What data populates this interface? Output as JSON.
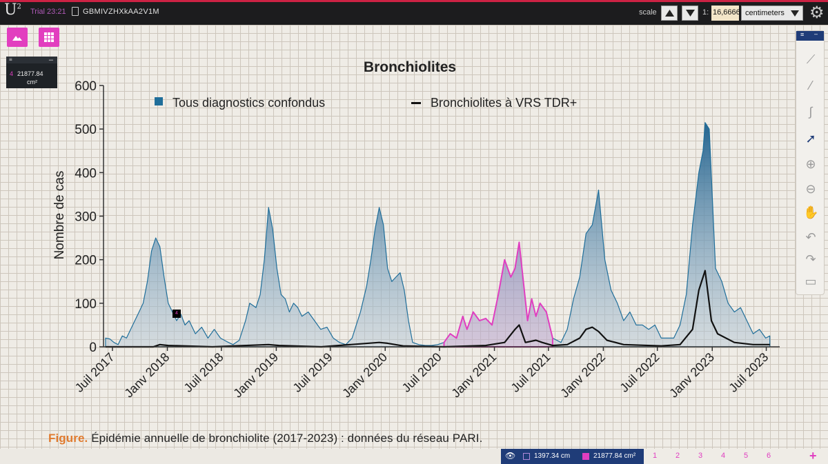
{
  "topbar": {
    "logo": "U",
    "logo_sup": "2",
    "trial": "Trial 23:21",
    "doc_name": "GBMIVZHXkAA2V1M",
    "scale_label": "scale",
    "ratio_label": "1:",
    "ratio_value": "16,6666",
    "unit": "centimeters"
  },
  "measure_panel": {
    "index": "4",
    "area_value": "21877.84",
    "area_unit": "cm²"
  },
  "statusbar": {
    "length": "1397.34 cm",
    "area": "21877.84 cm²",
    "pages": [
      "1",
      "2",
      "3",
      "4",
      "5",
      "6"
    ]
  },
  "annotation_marker": "4",
  "caption": {
    "figure_word": "Figure.",
    "text": " Épidémie annuelle de bronchiolite (2017-2023) : données du réseau PARI."
  },
  "colors": {
    "area_fill": "#b9c9d6",
    "area_stroke": "#1f6e9a",
    "vrs_line": "#111111",
    "selection": "#e03ec0",
    "accent_pink": "#e23ebf",
    "status_blue": "#1f3c78"
  },
  "chart_data": {
    "type": "area",
    "title": "Bronchiolites",
    "ylabel": "Nombre de cas",
    "xlabel": "",
    "ylim": [
      0,
      600
    ],
    "yticks": [
      "0",
      "100",
      "200",
      "300",
      "400",
      "500",
      "600"
    ],
    "xlim": [
      "2017-06-01",
      "2023-08-15"
    ],
    "xticks": [
      {
        "date": "2017-07-01",
        "label": "Juil 2017"
      },
      {
        "date": "2018-01-01",
        "label": "Janv 2018"
      },
      {
        "date": "2018-07-01",
        "label": "Juil 2018"
      },
      {
        "date": "2019-01-01",
        "label": "Janv 2019"
      },
      {
        "date": "2019-07-01",
        "label": "Juil 2019"
      },
      {
        "date": "2020-01-01",
        "label": "Janv 2020"
      },
      {
        "date": "2020-07-01",
        "label": "Juil 2020"
      },
      {
        "date": "2021-01-01",
        "label": "Janv 2021"
      },
      {
        "date": "2021-07-01",
        "label": "Juil 2021"
      },
      {
        "date": "2022-01-01",
        "label": "Janv 2022"
      },
      {
        "date": "2022-07-01",
        "label": "Juil 2022"
      },
      {
        "date": "2023-01-01",
        "label": "Janv 2023"
      },
      {
        "date": "2023-07-01",
        "label": "Juil 2023"
      }
    ],
    "grid": true,
    "legend_position": "top",
    "series": [
      {
        "name": "Tous diagnostics confondus",
        "style": "area",
        "points": [
          [
            "2017-06-08",
            20
          ],
          [
            "2017-06-22",
            18
          ],
          [
            "2017-07-06",
            10
          ],
          [
            "2017-07-20",
            5
          ],
          [
            "2017-08-03",
            25
          ],
          [
            "2017-08-17",
            20
          ],
          [
            "2017-09-07",
            50
          ],
          [
            "2017-09-28",
            80
          ],
          [
            "2017-10-12",
            100
          ],
          [
            "2017-10-26",
            150
          ],
          [
            "2017-11-09",
            220
          ],
          [
            "2017-11-23",
            250
          ],
          [
            "2017-12-07",
            230
          ],
          [
            "2017-12-21",
            160
          ],
          [
            "2018-01-04",
            100
          ],
          [
            "2018-01-18",
            80
          ],
          [
            "2018-02-01",
            60
          ],
          [
            "2018-02-15",
            75
          ],
          [
            "2018-03-01",
            50
          ],
          [
            "2018-03-15",
            60
          ],
          [
            "2018-04-05",
            30
          ],
          [
            "2018-04-26",
            45
          ],
          [
            "2018-05-17",
            20
          ],
          [
            "2018-06-07",
            40
          ],
          [
            "2018-06-28",
            20
          ],
          [
            "2018-07-19",
            12
          ],
          [
            "2018-08-09",
            5
          ],
          [
            "2018-08-30",
            15
          ],
          [
            "2018-09-20",
            60
          ],
          [
            "2018-10-04",
            100
          ],
          [
            "2018-10-25",
            90
          ],
          [
            "2018-11-08",
            120
          ],
          [
            "2018-11-22",
            200
          ],
          [
            "2018-12-06",
            320
          ],
          [
            "2018-12-20",
            270
          ],
          [
            "2019-01-03",
            180
          ],
          [
            "2019-01-17",
            120
          ],
          [
            "2019-01-31",
            110
          ],
          [
            "2019-02-14",
            80
          ],
          [
            "2019-02-28",
            100
          ],
          [
            "2019-03-14",
            90
          ],
          [
            "2019-03-28",
            70
          ],
          [
            "2019-04-18",
            80
          ],
          [
            "2019-05-09",
            60
          ],
          [
            "2019-05-30",
            40
          ],
          [
            "2019-06-20",
            45
          ],
          [
            "2019-07-11",
            20
          ],
          [
            "2019-08-01",
            10
          ],
          [
            "2019-08-22",
            5
          ],
          [
            "2019-09-12",
            20
          ],
          [
            "2019-09-26",
            50
          ],
          [
            "2019-10-10",
            80
          ],
          [
            "2019-10-31",
            140
          ],
          [
            "2019-11-14",
            200
          ],
          [
            "2019-11-28",
            270
          ],
          [
            "2019-12-12",
            320
          ],
          [
            "2019-12-26",
            280
          ],
          [
            "2020-01-09",
            180
          ],
          [
            "2020-01-23",
            150
          ],
          [
            "2020-02-06",
            160
          ],
          [
            "2020-02-20",
            170
          ],
          [
            "2020-03-05",
            130
          ],
          [
            "2020-03-19",
            60
          ],
          [
            "2020-04-02",
            10
          ],
          [
            "2020-04-23",
            5
          ],
          [
            "2020-05-14",
            3
          ],
          [
            "2020-06-04",
            3
          ],
          [
            "2020-06-25",
            5
          ],
          [
            "2020-07-16",
            10
          ],
          [
            "2020-08-06",
            30
          ],
          [
            "2020-08-27",
            20
          ],
          [
            "2020-09-17",
            70
          ],
          [
            "2020-10-01",
            40
          ],
          [
            "2020-10-22",
            80
          ],
          [
            "2020-11-12",
            60
          ],
          [
            "2020-12-03",
            65
          ],
          [
            "2020-12-24",
            50
          ],
          [
            "2021-01-14",
            120
          ],
          [
            "2021-02-04",
            200
          ],
          [
            "2021-02-25",
            160
          ],
          [
            "2021-03-11",
            180
          ],
          [
            "2021-03-25",
            240
          ],
          [
            "2021-04-08",
            150
          ],
          [
            "2021-04-22",
            60
          ],
          [
            "2021-05-06",
            110
          ],
          [
            "2021-05-20",
            70
          ],
          [
            "2021-06-03",
            100
          ],
          [
            "2021-06-24",
            80
          ],
          [
            "2021-07-15",
            20
          ],
          [
            "2021-07-29",
            15
          ],
          [
            "2021-08-12",
            10
          ],
          [
            "2021-09-02",
            40
          ],
          [
            "2021-09-23",
            110
          ],
          [
            "2021-10-14",
            160
          ],
          [
            "2021-11-04",
            260
          ],
          [
            "2021-11-25",
            280
          ],
          [
            "2021-12-16",
            360
          ],
          [
            "2022-01-06",
            200
          ],
          [
            "2022-01-27",
            130
          ],
          [
            "2022-02-17",
            100
          ],
          [
            "2022-03-10",
            60
          ],
          [
            "2022-03-31",
            80
          ],
          [
            "2022-04-21",
            50
          ],
          [
            "2022-05-12",
            50
          ],
          [
            "2022-06-02",
            40
          ],
          [
            "2022-06-23",
            50
          ],
          [
            "2022-07-14",
            20
          ],
          [
            "2022-08-04",
            20
          ],
          [
            "2022-08-25",
            20
          ],
          [
            "2022-09-15",
            50
          ],
          [
            "2022-10-06",
            120
          ],
          [
            "2022-10-27",
            280
          ],
          [
            "2022-11-17",
            400
          ],
          [
            "2022-12-01",
            450
          ],
          [
            "2022-12-08",
            515
          ],
          [
            "2022-12-22",
            500
          ],
          [
            "2023-01-12",
            180
          ],
          [
            "2023-02-02",
            150
          ],
          [
            "2023-02-23",
            100
          ],
          [
            "2023-03-16",
            80
          ],
          [
            "2023-04-06",
            90
          ],
          [
            "2023-04-27",
            60
          ],
          [
            "2023-05-18",
            30
          ],
          [
            "2023-06-08",
            40
          ],
          [
            "2023-06-29",
            20
          ],
          [
            "2023-07-13",
            25
          ]
        ]
      },
      {
        "name": "Bronchiolites à VRS TDR+",
        "style": "line",
        "points": [
          [
            "2017-06-08",
            0
          ],
          [
            "2017-11-15",
            0
          ],
          [
            "2017-12-07",
            5
          ],
          [
            "2018-01-04",
            3
          ],
          [
            "2018-06-01",
            0
          ],
          [
            "2018-12-06",
            5
          ],
          [
            "2019-01-10",
            3
          ],
          [
            "2019-06-01",
            0
          ],
          [
            "2019-12-12",
            10
          ],
          [
            "2020-01-09",
            8
          ],
          [
            "2020-03-01",
            2
          ],
          [
            "2020-07-16",
            0
          ],
          [
            "2020-12-03",
            3
          ],
          [
            "2021-02-04",
            10
          ],
          [
            "2021-03-11",
            40
          ],
          [
            "2021-03-25",
            50
          ],
          [
            "2021-04-15",
            10
          ],
          [
            "2021-05-20",
            15
          ],
          [
            "2021-06-10",
            10
          ],
          [
            "2021-07-15",
            3
          ],
          [
            "2021-09-02",
            5
          ],
          [
            "2021-10-14",
            20
          ],
          [
            "2021-11-04",
            40
          ],
          [
            "2021-11-25",
            45
          ],
          [
            "2021-12-16",
            35
          ],
          [
            "2022-01-13",
            15
          ],
          [
            "2022-03-10",
            5
          ],
          [
            "2022-07-14",
            2
          ],
          [
            "2022-09-15",
            5
          ],
          [
            "2022-10-27",
            40
          ],
          [
            "2022-11-17",
            130
          ],
          [
            "2022-12-08",
            175
          ],
          [
            "2022-12-29",
            60
          ],
          [
            "2023-01-19",
            30
          ],
          [
            "2023-03-16",
            10
          ],
          [
            "2023-05-18",
            5
          ],
          [
            "2023-07-13",
            5
          ]
        ]
      }
    ],
    "selection_polygon": {
      "name": "measured region 4",
      "color": "#e03ec0",
      "from": "2020-07-16",
      "to": "2021-07-15"
    }
  }
}
